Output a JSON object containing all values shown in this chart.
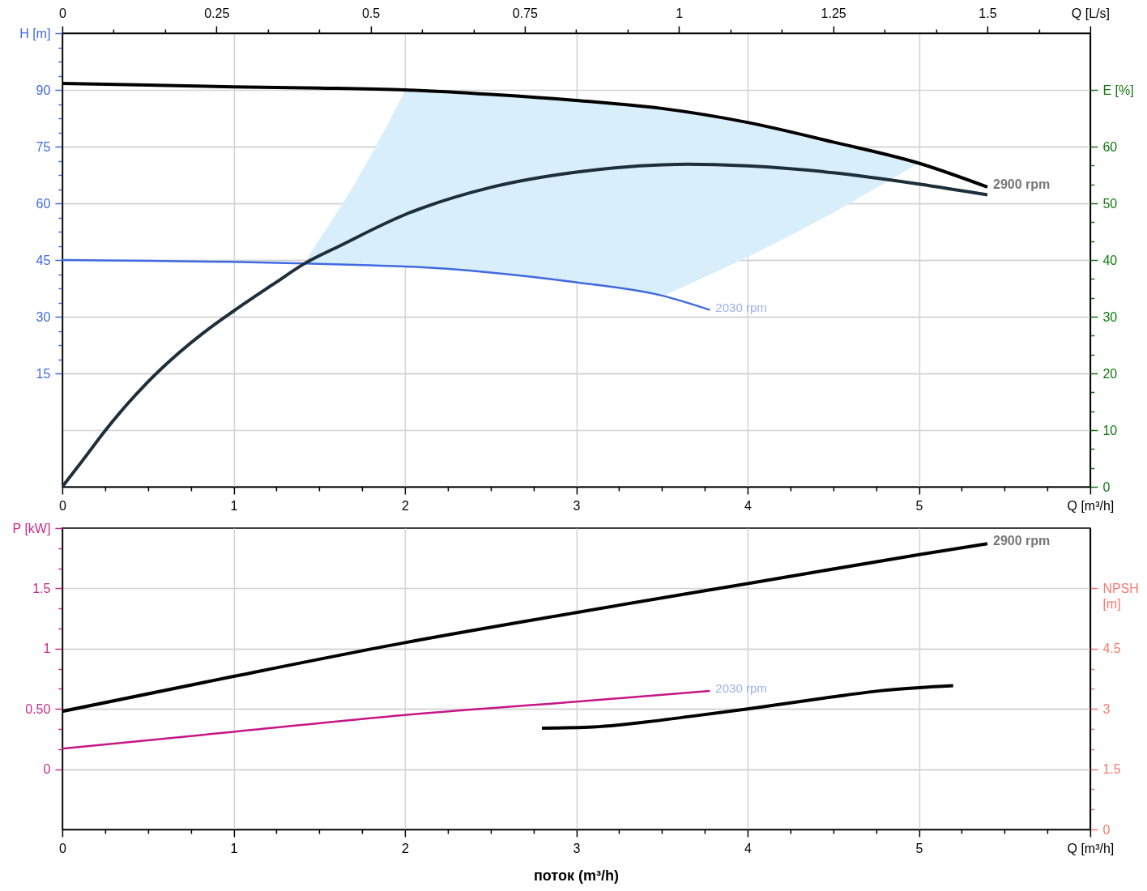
{
  "chart_data": [
    {
      "type": "line",
      "xlabel": "Q [m³/h]",
      "x2label": "Q [L/s]",
      "ylabel": "H [m]",
      "y2label": "E [%]",
      "grid": true,
      "xlim": [
        0,
        6
      ],
      "xticks": [
        0,
        {
          "value": 0.25,
          "label": null
        },
        {
          "value": 0.5,
          "label": null
        },
        {
          "value": 0.75,
          "label": null
        },
        1,
        {
          "value": 1.25,
          "label": null
        },
        {
          "value": 1.5,
          "label": null
        },
        {
          "value": 1.75,
          "label": null
        },
        2,
        {
          "value": 2.25,
          "label": null
        },
        {
          "value": 2.5,
          "label": null
        },
        {
          "value": 2.75,
          "label": null
        },
        3,
        {
          "value": 3.25,
          "label": null
        },
        {
          "value": 3.5,
          "label": null
        },
        {
          "value": 3.75,
          "label": null
        },
        4,
        {
          "value": 4.25,
          "label": null
        },
        {
          "value": 4.5,
          "label": null
        },
        {
          "value": 4.75,
          "label": null
        },
        5,
        {
          "value": 5.25,
          "label": null
        },
        {
          "value": 5.5,
          "label": null
        },
        {
          "value": 5.75,
          "label": null
        },
        {
          "value": 6,
          "label": null
        }
      ],
      "x2lim": [
        0,
        1.6667
      ],
      "x2ticks": [
        0,
        {
          "value": 0.0833,
          "label": null
        },
        {
          "value": 0.1667,
          "label": null
        },
        0.25,
        {
          "value": 0.3333,
          "label": null
        },
        {
          "value": 0.4167,
          "label": null
        },
        0.5,
        {
          "value": 0.5833,
          "label": null
        },
        {
          "value": 0.6667,
          "label": null
        },
        0.75,
        {
          "value": 0.8333,
          "label": null
        },
        {
          "value": 0.9167,
          "label": null
        },
        1,
        {
          "value": 1.0833,
          "label": null
        },
        {
          "value": 1.1667,
          "label": null
        },
        1.25,
        {
          "value": 1.3333,
          "label": null
        },
        {
          "value": 1.4167,
          "label": null
        },
        1.5,
        {
          "value": 1.5833,
          "label": null
        },
        {
          "value": 1.6667,
          "label": null
        }
      ],
      "ylim": [
        -15,
        105
      ],
      "yticks": [
        15,
        {
          "value": 18.75,
          "label": null
        },
        {
          "value": 22.5,
          "label": null
        },
        {
          "value": 26.25,
          "label": null
        },
        30,
        {
          "value": 33.75,
          "label": null
        },
        {
          "value": 37.5,
          "label": null
        },
        {
          "value": 41.25,
          "label": null
        },
        45,
        {
          "value": 48.75,
          "label": null
        },
        {
          "value": 52.5,
          "label": null
        },
        {
          "value": 56.25,
          "label": null
        },
        60,
        {
          "value": 63.75,
          "label": null
        },
        {
          "value": 67.5,
          "label": null
        },
        {
          "value": 71.25,
          "label": null
        },
        75,
        {
          "value": 78.75,
          "label": null
        },
        {
          "value": 82.5,
          "label": null
        },
        {
          "value": 86.25,
          "label": null
        },
        90,
        {
          "value": 93.75,
          "label": null
        },
        {
          "value": 97.5,
          "label": null
        },
        {
          "value": 101.25,
          "label": null
        },
        {
          "value": 105,
          "label": null
        }
      ],
      "y2lim": [
        0,
        80
      ],
      "y2ticks": [
        0,
        {
          "value": 3.33,
          "label": null
        },
        {
          "value": 6.67,
          "label": null
        },
        10,
        {
          "value": 13.33,
          "label": null
        },
        {
          "value": 16.67,
          "label": null
        },
        20,
        {
          "value": 23.33,
          "label": null
        },
        {
          "value": 26.67,
          "label": null
        },
        30,
        {
          "value": 33.33,
          "label": null
        },
        {
          "value": 36.67,
          "label": null
        },
        40,
        {
          "value": 43.33,
          "label": null
        },
        {
          "value": 46.67,
          "label": null
        },
        50,
        {
          "value": 53.33,
          "label": null
        },
        {
          "value": 56.67,
          "label": null
        },
        60,
        {
          "value": 70,
          "label": null
        }
      ],
      "series": [
        {
          "type": "area",
          "color": "#d9eefb",
          "x": [
            1.41,
            1.5,
            1.6,
            1.7,
            1.8,
            1.9,
            2,
            2.5,
            3,
            3.51,
            3.75,
            4,
            4.25,
            4.5,
            4.75,
            5
          ],
          "values": [
            null,
            null,
            null,
            null,
            null,
            null,
            null,
            null,
            null,
            null,
            null,
            null,
            null,
            null,
            null,
            null
          ],
          "upper": [
            44.1,
            50.4,
            57.3,
            64.7,
            72.6,
            80.9,
            89.8,
            88.7,
            87.1,
            84.9,
            83.4,
            81.3,
            78.9,
            76.1,
            73.3,
            70.6
          ],
          "lower": [
            44.1,
            44.0,
            43.9,
            43.8,
            43.6,
            43.5,
            43.3,
            41.7,
            39.1,
            35.5,
            40.5,
            45.8,
            51.5,
            57.5,
            64.0,
            70.6
          ]
        },
        {
          "name": "2900 rpm",
          "color": "#000000",
          "x": [
            0,
            0.5,
            1,
            1.5,
            2,
            2.5,
            3,
            3.5,
            4,
            4.5,
            5,
            5.4
          ],
          "values": [
            91.7,
            91.3,
            90.8,
            90.5,
            90.0,
            88.8,
            87.2,
            85.1,
            81.4,
            76.2,
            70.6,
            64.3
          ]
        },
        {
          "name": "2030 rpm",
          "color": "#4169e1",
          "x": [
            0,
            0.5,
            1,
            1.41,
            1.8,
            2,
            2.5,
            3,
            3.5,
            3.78
          ],
          "values": [
            45.0,
            44.8,
            44.5,
            44.1,
            43.6,
            43.3,
            41.7,
            39.1,
            35.6,
            31.8
          ]
        },
        {
          "axis": "y2",
          "color": "#1e2f3b",
          "x": [
            0,
            0.12,
            0.25,
            0.38,
            0.49,
            0.68,
            0.83,
            1,
            1.24,
            1.41,
            1.62,
            2,
            2.5,
            3,
            3.5,
            3.65,
            4,
            4.5,
            5,
            5.4
          ],
          "values": [
            0,
            4.7,
            9.9,
            14.6,
            18.2,
            23.6,
            27.3,
            31.0,
            35.9,
            39.3,
            42.5,
            48.0,
            52.8,
            55.5,
            56.8,
            56.9,
            56.6,
            55.4,
            53.4,
            51.5
          ]
        }
      ]
    },
    {
      "type": "line",
      "xlabel": "Q [m³/h]",
      "ylabel": "P [kW]",
      "y2label": "NPSH [m]",
      "grid": true,
      "annotations": [
        "поток (m³/h)"
      ],
      "xlim": [
        0,
        6
      ],
      "xticks": [
        0,
        {
          "value": 0.25,
          "label": null
        },
        {
          "value": 0.5,
          "label": null
        },
        {
          "value": 0.75,
          "label": null
        },
        1,
        {
          "value": 1.25,
          "label": null
        },
        {
          "value": 1.5,
          "label": null
        },
        {
          "value": 1.75,
          "label": null
        },
        2,
        {
          "value": 2.25,
          "label": null
        },
        {
          "value": 2.5,
          "label": null
        },
        {
          "value": 2.75,
          "label": null
        },
        3,
        {
          "value": 3.25,
          "label": null
        },
        {
          "value": 3.5,
          "label": null
        },
        {
          "value": 3.75,
          "label": null
        },
        4,
        {
          "value": 4.25,
          "label": null
        },
        {
          "value": 4.5,
          "label": null
        },
        {
          "value": 4.75,
          "label": null
        },
        5,
        {
          "value": 5.25,
          "label": null
        },
        {
          "value": 5.5,
          "label": null
        },
        {
          "value": 5.75,
          "label": null
        },
        {
          "value": 6,
          "label": null
        }
      ],
      "ylim": [
        -0.5,
        2
      ],
      "yticks": [
        0,
        {
          "value": 0.1667,
          "label": null
        },
        {
          "value": 0.3333,
          "label": null
        },
        {
          "value": 0.5,
          "label": "0.50"
        },
        {
          "value": 0.6667,
          "label": null
        },
        {
          "value": 0.8333,
          "label": null
        },
        1,
        {
          "value": 1.1667,
          "label": null
        },
        {
          "value": 1.3333,
          "label": null
        },
        1.5,
        {
          "value": 1.6667,
          "label": null
        },
        {
          "value": 1.8333,
          "label": null
        },
        {
          "value": 2,
          "label": null
        }
      ],
      "y2lim": [
        0,
        7.5
      ],
      "y2ticks": [
        0,
        {
          "value": 0.5,
          "label": null
        },
        {
          "value": 1,
          "label": null
        },
        1.5,
        {
          "value": 2,
          "label": null
        },
        {
          "value": 2.5,
          "label": null
        },
        3,
        {
          "value": 3.5,
          "label": null
        },
        {
          "value": 4,
          "label": null
        },
        4.5,
        {
          "value": 6,
          "label": null
        }
      ],
      "series": [
        {
          "name": "2900 rpm",
          "color": "#000000",
          "x": [
            0,
            1,
            2,
            3,
            4,
            5,
            5.4
          ],
          "values": [
            0.48,
            0.77,
            1.05,
            1.3,
            1.54,
            1.78,
            1.87
          ]
        },
        {
          "name": "2030 rpm",
          "color": "#c71585",
          "x": [
            0,
            1,
            2,
            3,
            3.78
          ],
          "values": [
            0.17,
            0.31,
            0.45,
            0.56,
            0.65
          ]
        },
        {
          "axis": "y2",
          "color": "#000000",
          "x": [
            2.8,
            3.1,
            3.4,
            3.66,
            4,
            4.3,
            4.5,
            4.77,
            5,
            5.2
          ],
          "values": [
            2.52,
            2.55,
            2.67,
            2.81,
            3.0,
            3.18,
            3.3,
            3.45,
            3.53,
            3.58
          ]
        }
      ]
    }
  ]
}
